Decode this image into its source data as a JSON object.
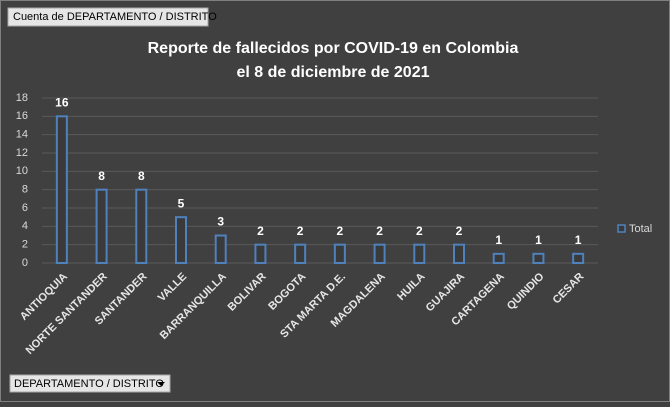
{
  "chart_data": {
    "type": "bar",
    "title": "Reporte de fallecidos por COVID-19 en Colombia",
    "subtitle": "el 8 de diciembre de 2021",
    "field_buttons": {
      "values": "Cuenta de DEPARTAMENTO / DISTRITO",
      "axis": "DEPARTAMENTO / DISTRITO"
    },
    "categories": [
      "ANTIOQUIA",
      "NORTE SANTANDER",
      "SANTANDER",
      "VALLE",
      "BARRANQUILLA",
      "BOLIVAR",
      "BOGOTA",
      "STA MARTA D.E.",
      "MAGDALENA",
      "HUILA",
      "GUAJIRA",
      "CARTAGENA",
      "QUINDIO",
      "CESAR"
    ],
    "series": [
      {
        "name": "Total",
        "color": "#4f81bd",
        "values": [
          16,
          8,
          8,
          5,
          3,
          2,
          2,
          2,
          2,
          2,
          2,
          1,
          1,
          1
        ]
      }
    ],
    "ylim": [
      0,
      18
    ],
    "yticks": [
      0,
      2,
      4,
      6,
      8,
      10,
      12,
      14,
      16,
      18
    ],
    "grid": true,
    "legend": "right"
  }
}
